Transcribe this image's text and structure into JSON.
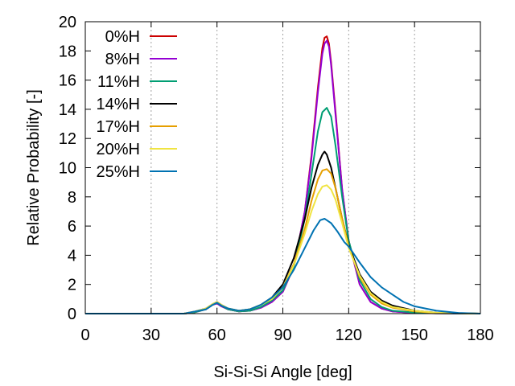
{
  "chart_data": {
    "type": "line",
    "xlabel": "Si-Si-Si Angle  [deg]",
    "ylabel": "Relative Probability  [-]",
    "xlim": [
      0,
      180
    ],
    "ylim": [
      0,
      20
    ],
    "xticks": [
      0,
      30,
      60,
      90,
      120,
      150,
      180
    ],
    "yticks": [
      0,
      2,
      4,
      6,
      8,
      10,
      12,
      14,
      16,
      18,
      20
    ],
    "grid": "vertical dotted",
    "legend_position": "top-left",
    "series": [
      {
        "name": "0%H",
        "color": "#cc0000",
        "x": [
          0,
          45,
          50,
          55,
          58,
          60,
          62,
          65,
          70,
          75,
          80,
          85,
          90,
          95,
          100,
          103,
          106,
          108,
          109,
          110,
          111,
          112,
          114,
          117,
          120,
          125,
          130,
          135,
          140,
          150,
          160,
          180
        ],
        "y": [
          0,
          0,
          0.1,
          0.3,
          0.6,
          0.7,
          0.5,
          0.3,
          0.15,
          0.2,
          0.4,
          0.8,
          1.5,
          3.2,
          7.0,
          10.8,
          15.5,
          18.2,
          18.9,
          19.0,
          18.5,
          17.2,
          13.8,
          8.5,
          5.0,
          2.0,
          0.8,
          0.35,
          0.15,
          0.05,
          0.02,
          0
        ]
      },
      {
        "name": "8%H",
        "color": "#9400d3",
        "x": [
          0,
          45,
          50,
          55,
          58,
          60,
          62,
          65,
          70,
          75,
          80,
          85,
          90,
          95,
          100,
          103,
          106,
          108,
          109,
          110,
          111,
          112,
          114,
          117,
          120,
          125,
          130,
          135,
          140,
          150,
          160,
          180
        ],
        "y": [
          0,
          0,
          0.1,
          0.3,
          0.6,
          0.7,
          0.5,
          0.3,
          0.15,
          0.2,
          0.4,
          0.8,
          1.5,
          3.2,
          7.0,
          10.6,
          15.2,
          17.8,
          18.5,
          18.7,
          18.3,
          17.0,
          13.6,
          8.5,
          5.0,
          2.0,
          0.8,
          0.35,
          0.15,
          0.05,
          0.02,
          0
        ]
      },
      {
        "name": "11%H",
        "color": "#009e73",
        "x": [
          0,
          45,
          50,
          55,
          58,
          60,
          62,
          65,
          70,
          75,
          80,
          85,
          90,
          95,
          100,
          103,
          106,
          108,
          110,
          112,
          114,
          117,
          120,
          125,
          130,
          135,
          140,
          150,
          160,
          180
        ],
        "y": [
          0,
          0,
          0.1,
          0.3,
          0.6,
          0.75,
          0.55,
          0.3,
          0.15,
          0.2,
          0.45,
          0.9,
          1.6,
          3.2,
          6.5,
          9.5,
          12.5,
          13.8,
          14.1,
          13.5,
          11.5,
          8.0,
          5.0,
          2.3,
          1.0,
          0.45,
          0.2,
          0.07,
          0.02,
          0
        ]
      },
      {
        "name": "14%H",
        "color": "#000000",
        "x": [
          0,
          45,
          50,
          55,
          58,
          60,
          62,
          65,
          70,
          75,
          80,
          85,
          90,
          95,
          100,
          103,
          106,
          108,
          109,
          110,
          112,
          114,
          117,
          120,
          125,
          130,
          135,
          140,
          150,
          160,
          180
        ],
        "y": [
          0,
          0,
          0.15,
          0.35,
          0.65,
          0.8,
          0.6,
          0.35,
          0.2,
          0.3,
          0.6,
          1.1,
          2.0,
          3.8,
          6.5,
          8.6,
          10.2,
          10.9,
          11.1,
          10.9,
          10.0,
          8.6,
          6.5,
          4.7,
          2.7,
          1.5,
          0.9,
          0.55,
          0.2,
          0.06,
          0
        ]
      },
      {
        "name": "17%H",
        "color": "#e69f00",
        "x": [
          0,
          45,
          50,
          55,
          58,
          60,
          62,
          65,
          70,
          75,
          80,
          85,
          90,
          95,
          100,
          103,
          106,
          108,
          110,
          112,
          114,
          117,
          120,
          125,
          130,
          135,
          140,
          150,
          160,
          180
        ],
        "y": [
          0,
          0,
          0.15,
          0.35,
          0.65,
          0.8,
          0.6,
          0.35,
          0.2,
          0.3,
          0.6,
          1.0,
          1.8,
          3.4,
          5.8,
          7.7,
          9.2,
          9.8,
          9.9,
          9.6,
          8.6,
          6.5,
          4.6,
          2.5,
          1.3,
          0.7,
          0.4,
          0.15,
          0.05,
          0
        ]
      },
      {
        "name": "20%H",
        "color": "#f0e442",
        "x": [
          0,
          45,
          50,
          55,
          58,
          60,
          62,
          65,
          70,
          75,
          80,
          85,
          90,
          95,
          100,
          103,
          106,
          108,
          110,
          112,
          114,
          117,
          120,
          125,
          130,
          135,
          140,
          150,
          160,
          180
        ],
        "y": [
          0,
          0,
          0.15,
          0.35,
          0.65,
          0.8,
          0.6,
          0.35,
          0.2,
          0.3,
          0.6,
          1.0,
          1.8,
          3.3,
          5.5,
          7.0,
          8.2,
          8.7,
          8.8,
          8.5,
          7.8,
          6.2,
          4.5,
          2.6,
          1.4,
          0.8,
          0.45,
          0.2,
          0.06,
          0
        ]
      },
      {
        "name": "25%H",
        "color": "#0072b2",
        "x": [
          0,
          45,
          50,
          55,
          58,
          60,
          62,
          65,
          70,
          75,
          80,
          85,
          90,
          95,
          100,
          104,
          107,
          109,
          110,
          112,
          115,
          118,
          120,
          125,
          130,
          135,
          140,
          145,
          150,
          160,
          170,
          180
        ],
        "y": [
          0,
          0,
          0.15,
          0.3,
          0.6,
          0.75,
          0.55,
          0.35,
          0.2,
          0.3,
          0.6,
          1.1,
          1.8,
          3.0,
          4.5,
          5.7,
          6.4,
          6.5,
          6.4,
          6.2,
          5.6,
          4.9,
          4.6,
          3.5,
          2.5,
          1.8,
          1.3,
          0.8,
          0.5,
          0.2,
          0.05,
          0
        ]
      }
    ]
  }
}
